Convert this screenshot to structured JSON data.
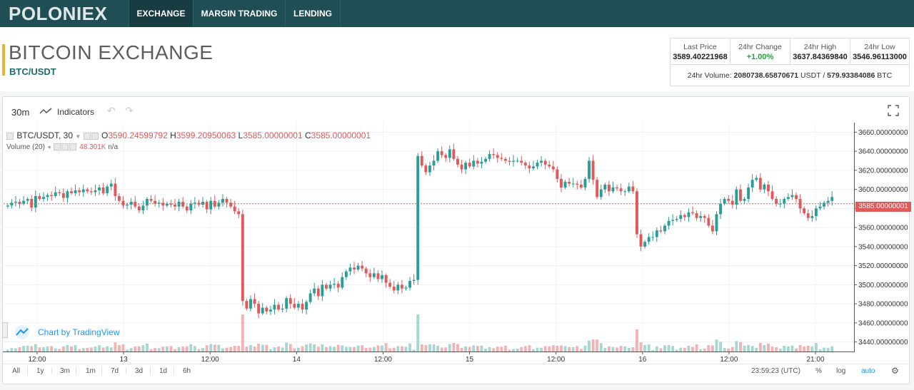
{
  "brand": {
    "logo": "POLONIEX"
  },
  "nav": {
    "tabs": [
      {
        "label": "EXCHANGE"
      },
      {
        "label": "MARGIN TRADING"
      },
      {
        "label": "LENDING"
      }
    ]
  },
  "header": {
    "title": "BITCOIN EXCHANGE",
    "pair": "BTC/USDT"
  },
  "stats": {
    "last_price_label": "Last Price",
    "last_price": "3589.40221968",
    "change_label": "24hr Change",
    "change": "+1.00%",
    "high_label": "24hr High",
    "high": "3637.84369840",
    "low_label": "24hr Low",
    "low": "3546.96113000",
    "volume_label": "24hr Volume:",
    "volume_usdt": "2080738.65870671",
    "usdt": "USDT",
    "slash": "/",
    "volume_btc": "579.93384086",
    "btc": "BTC"
  },
  "toolbar": {
    "interval": "30m",
    "indicators": "Indicators"
  },
  "legend": {
    "symbol": "BTC/USDT, 30",
    "o_label": "O",
    "o": "3590.24599792",
    "h_label": "H",
    "h": "3599.20950063",
    "l_label": "L",
    "l": "3585.00000001",
    "c_label": "C",
    "c": "3585.00000001",
    "volume_name": "Volume (20)",
    "volume_value": "48.301K",
    "volume_extra": "n/a"
  },
  "watermark": {
    "text": "Chart by TradingView"
  },
  "bottombar": {
    "ranges": [
      "All",
      "1y",
      "3m",
      "1m",
      "7d",
      "3d",
      "1d",
      "6h"
    ],
    "clock": "23:59:23 (UTC)",
    "percent": "%",
    "log": "log",
    "auto": "auto"
  },
  "chart_data": {
    "type": "candlestick",
    "price_ticks": [
      "3660.00000000",
      "3640.00000000",
      "3620.00000000",
      "3600.00000000",
      "3580.00000000",
      "3560.00000000",
      "3540.00000000",
      "3520.00000000",
      "3500.00000000",
      "3480.00000000",
      "3460.00000000",
      "3440.00000000"
    ],
    "time_ticks": [
      "12:00",
      "13",
      "12:00",
      "14",
      "12:00",
      "15",
      "12:00",
      "16",
      "12:00",
      "21:00"
    ],
    "current_price": "3585.00000001",
    "ylim": [
      3430,
      3670
    ],
    "colors": {
      "up": "#2a9d96",
      "down": "#e05a5a",
      "vol_up": "#a7d6d3",
      "vol_down": "#f1b3b3"
    },
    "closes": [
      3583,
      3586,
      3587,
      3585,
      3588,
      3590,
      3581,
      3593,
      3590,
      3592,
      3594,
      3593,
      3597,
      3596,
      3591,
      3598,
      3596,
      3599,
      3597,
      3600,
      3598,
      3597,
      3599,
      3602,
      3596,
      3603,
      3606,
      3593,
      3588,
      3583,
      3584,
      3587,
      3582,
      3578,
      3583,
      3590,
      3588,
      3585,
      3586,
      3583,
      3585,
      3584,
      3582,
      3587,
      3582,
      3578,
      3585,
      3586,
      3584,
      3587,
      3579,
      3588,
      3582,
      3586,
      3590,
      3586,
      3582,
      3577,
      3574,
      3483,
      3475,
      3485,
      3480,
      3470,
      3476,
      3472,
      3474,
      3479,
      3474,
      3475,
      3486,
      3480,
      3476,
      3480,
      3474,
      3482,
      3491,
      3496,
      3488,
      3500,
      3496,
      3500,
      3501,
      3497,
      3508,
      3514,
      3518,
      3516,
      3520,
      3517,
      3512,
      3508,
      3512,
      3506,
      3510,
      3502,
      3498,
      3494,
      3500,
      3496,
      3497,
      3504,
      3505,
      3635,
      3625,
      3618,
      3625,
      3630,
      3640,
      3636,
      3633,
      3642,
      3632,
      3626,
      3621,
      3628,
      3624,
      3630,
      3627,
      3629,
      3632,
      3637,
      3636,
      3633,
      3632,
      3630,
      3629,
      3630,
      3630,
      3628,
      3625,
      3622,
      3624,
      3628,
      3630,
      3626,
      3624,
      3621,
      3611,
      3602,
      3608,
      3606,
      3606,
      3605,
      3602,
      3611,
      3630,
      3610,
      3592,
      3600,
      3605,
      3598,
      3602,
      3601,
      3598,
      3598,
      3603,
      3598,
      3553,
      3540,
      3545,
      3550,
      3550,
      3557,
      3556,
      3562,
      3567,
      3568,
      3569,
      3573,
      3571,
      3576,
      3575,
      3570,
      3572,
      3570,
      3562,
      3556,
      3574,
      3585,
      3590,
      3588,
      3584,
      3600,
      3588,
      3590,
      3602,
      3610,
      3612,
      3600,
      3605,
      3598,
      3590,
      3585,
      3585,
      3590,
      3592,
      3594,
      3590,
      3580,
      3575,
      3570,
      3572,
      3580,
      3582,
      3586,
      3588,
      3592
    ]
  }
}
